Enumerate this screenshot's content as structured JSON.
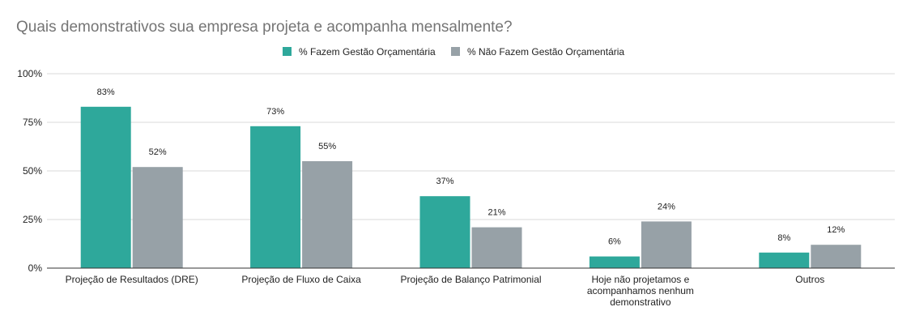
{
  "chart_data": {
    "type": "bar",
    "title": "Quais demonstrativos sua empresa projeta e acompanha mensalmente?",
    "categories": [
      [
        "Projeção de Resultados (DRE)"
      ],
      [
        "Projeção de Fluxo de Caixa"
      ],
      [
        "Projeção de Balanço Patrimonial"
      ],
      [
        "Hoje não projetamos e",
        "acompanhamos nenhum",
        "demonstrativo"
      ],
      [
        "Outros"
      ]
    ],
    "series": [
      {
        "name": "% Fazem Gestão Orçamentária",
        "color": "#2ea89b",
        "values": [
          83,
          73,
          37,
          6,
          8
        ],
        "labels": [
          "83%",
          "73%",
          "37%",
          "6%",
          "8%"
        ]
      },
      {
        "name": "% Não Fazem Gestão Orçamentária",
        "color": "#97a1a7",
        "values": [
          52,
          55,
          21,
          24,
          12
        ],
        "labels": [
          "52%",
          "55%",
          "21%",
          "24%",
          "12%"
        ]
      }
    ],
    "ylim": [
      0,
      100
    ],
    "yticks": [
      0,
      25,
      50,
      75,
      100
    ],
    "ytick_labels": [
      "0%",
      "25%",
      "50%",
      "75%",
      "100%"
    ],
    "grid": true,
    "legend_position": "top-center"
  }
}
